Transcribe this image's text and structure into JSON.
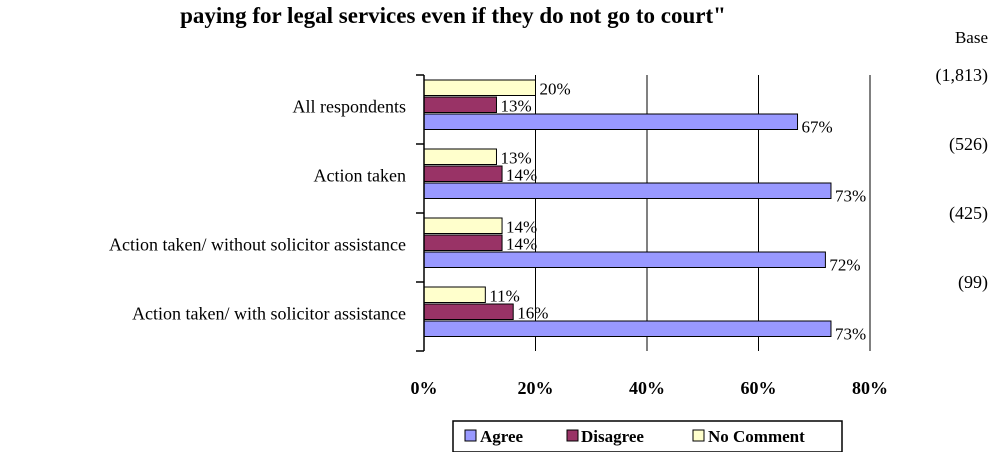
{
  "chart_data": {
    "type": "bar",
    "orientation": "horizontal",
    "title": "paying for legal services even if they do not go to court\"",
    "base_header": "Base",
    "categories": [
      "All respondents",
      "Action taken",
      "Action taken/ without solicitor assistance",
      "Action taken/ with solicitor assistance"
    ],
    "bases": [
      "(1,813)",
      "(526)",
      "(425)",
      "(99)"
    ],
    "series": [
      {
        "name": "Agree",
        "values": [
          67,
          73,
          72,
          73
        ],
        "labels": [
          "67%",
          "73%",
          "72%",
          "73%"
        ],
        "color": "#9999ff"
      },
      {
        "name": "Disagree",
        "values": [
          13,
          14,
          14,
          16
        ],
        "labels": [
          "13%",
          "14%",
          "14%",
          "16%"
        ],
        "color": "#993366"
      },
      {
        "name": "No Comment",
        "values": [
          20,
          13,
          14,
          11
        ],
        "labels": [
          "20%",
          "13%",
          "14%",
          "11%"
        ],
        "color": "#ffffcc"
      }
    ],
    "xlim": [
      0,
      80
    ],
    "xticks": [
      0,
      20,
      40,
      60,
      80
    ],
    "xtick_labels": [
      "0%",
      "20%",
      "40%",
      "60%",
      "80%"
    ],
    "grid": true,
    "legend_position": "bottom"
  }
}
